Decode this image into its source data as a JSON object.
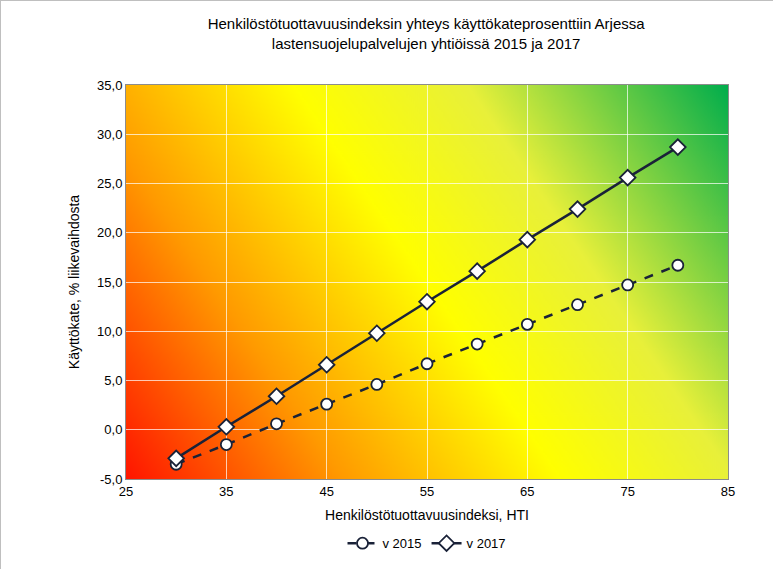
{
  "chart_data": {
    "type": "line",
    "title": [
      "Henkilöstötuottavuusindeksin yhteys käyttökateprosenttiin Arjessa",
      "lastensuojelupalvelujen yhtiöissä 2015 ja 2017"
    ],
    "x_label": "Henkilöstötuottavuusindeksi, HTI",
    "y_label": "Käyttökate, % liikevaihdosta",
    "x": [
      30,
      35,
      40,
      45,
      50,
      55,
      60,
      65,
      70,
      75,
      80
    ],
    "series": [
      {
        "name": "v 2015",
        "color": "#1a2238",
        "marker": "circle",
        "line_style": "dash",
        "values": [
          -3.5,
          -1.5,
          0.6,
          2.6,
          4.6,
          6.7,
          8.7,
          10.7,
          12.7,
          14.7,
          16.7
        ]
      },
      {
        "name": "v 2017",
        "color": "#1a2238",
        "marker": "diamond",
        "line_style": "solid",
        "values": [
          -2.9,
          0.3,
          3.4,
          6.6,
          9.8,
          13.0,
          16.1,
          19.3,
          22.4,
          25.6,
          28.7
        ]
      }
    ],
    "xlim": [
      25,
      85
    ],
    "xticks": [
      25,
      35,
      45,
      55,
      65,
      75,
      85
    ],
    "ylim": [
      -5,
      35
    ],
    "yticks": [
      {
        "value": -5,
        "label": "-5,0"
      },
      {
        "value": 0,
        "label": "0,0"
      },
      {
        "value": 5,
        "label": "5,0"
      },
      {
        "value": 10,
        "label": "10,0"
      },
      {
        "value": 15,
        "label": "15,0"
      },
      {
        "value": 20,
        "label": "20,0"
      },
      {
        "value": 25,
        "label": "25,0"
      },
      {
        "value": 30,
        "label": "30,0"
      },
      {
        "value": 35,
        "label": "35,0"
      }
    ],
    "grid": true,
    "legend": "bottom"
  }
}
